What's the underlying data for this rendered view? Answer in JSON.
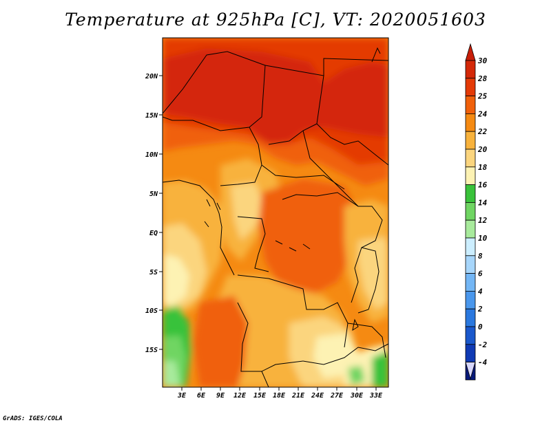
{
  "title": "Temperature at 925hPa [C], VT: 2020051603",
  "credit": "GrADS: IGES/COLA",
  "map": {
    "lat_labels": [
      "20N",
      "15N",
      "10N",
      "5N",
      "EQ",
      "5S",
      "10S",
      "15S"
    ],
    "lon_labels": [
      "3E",
      "6E",
      "9E",
      "12E",
      "15E",
      "18E",
      "21E",
      "24E",
      "27E",
      "30E",
      "33E"
    ]
  },
  "legend": {
    "unit": "C",
    "levels": [
      {
        "label": "30",
        "color": "#d42808"
      },
      {
        "label": "28",
        "color": "#e43a06"
      },
      {
        "label": "25",
        "color": "#f0600b"
      },
      {
        "label": "24",
        "color": "#f58a12"
      },
      {
        "label": "22",
        "color": "#f8b23c"
      },
      {
        "label": "20",
        "color": "#fbd57e"
      },
      {
        "label": "18",
        "color": "#fdf2b3"
      },
      {
        "label": "16",
        "color": "#39c23a"
      },
      {
        "label": "14",
        "color": "#6fd562"
      },
      {
        "label": "12",
        "color": "#a8ea9c"
      },
      {
        "label": "10",
        "color": "#cceeff"
      },
      {
        "label": "8",
        "color": "#a7d6fb"
      },
      {
        "label": "6",
        "color": "#73b6f5"
      },
      {
        "label": "4",
        "color": "#4a97ec"
      },
      {
        "label": "2",
        "color": "#2a78df"
      },
      {
        "label": "0",
        "color": "#1a58cc"
      },
      {
        "label": "-2",
        "color": "#0f3ab4"
      },
      {
        "label": "-4",
        "color": "#07197a"
      }
    ],
    "top_arrow_color": "#c81e08",
    "bottom_arrow_color": "#d6d6fb"
  }
}
